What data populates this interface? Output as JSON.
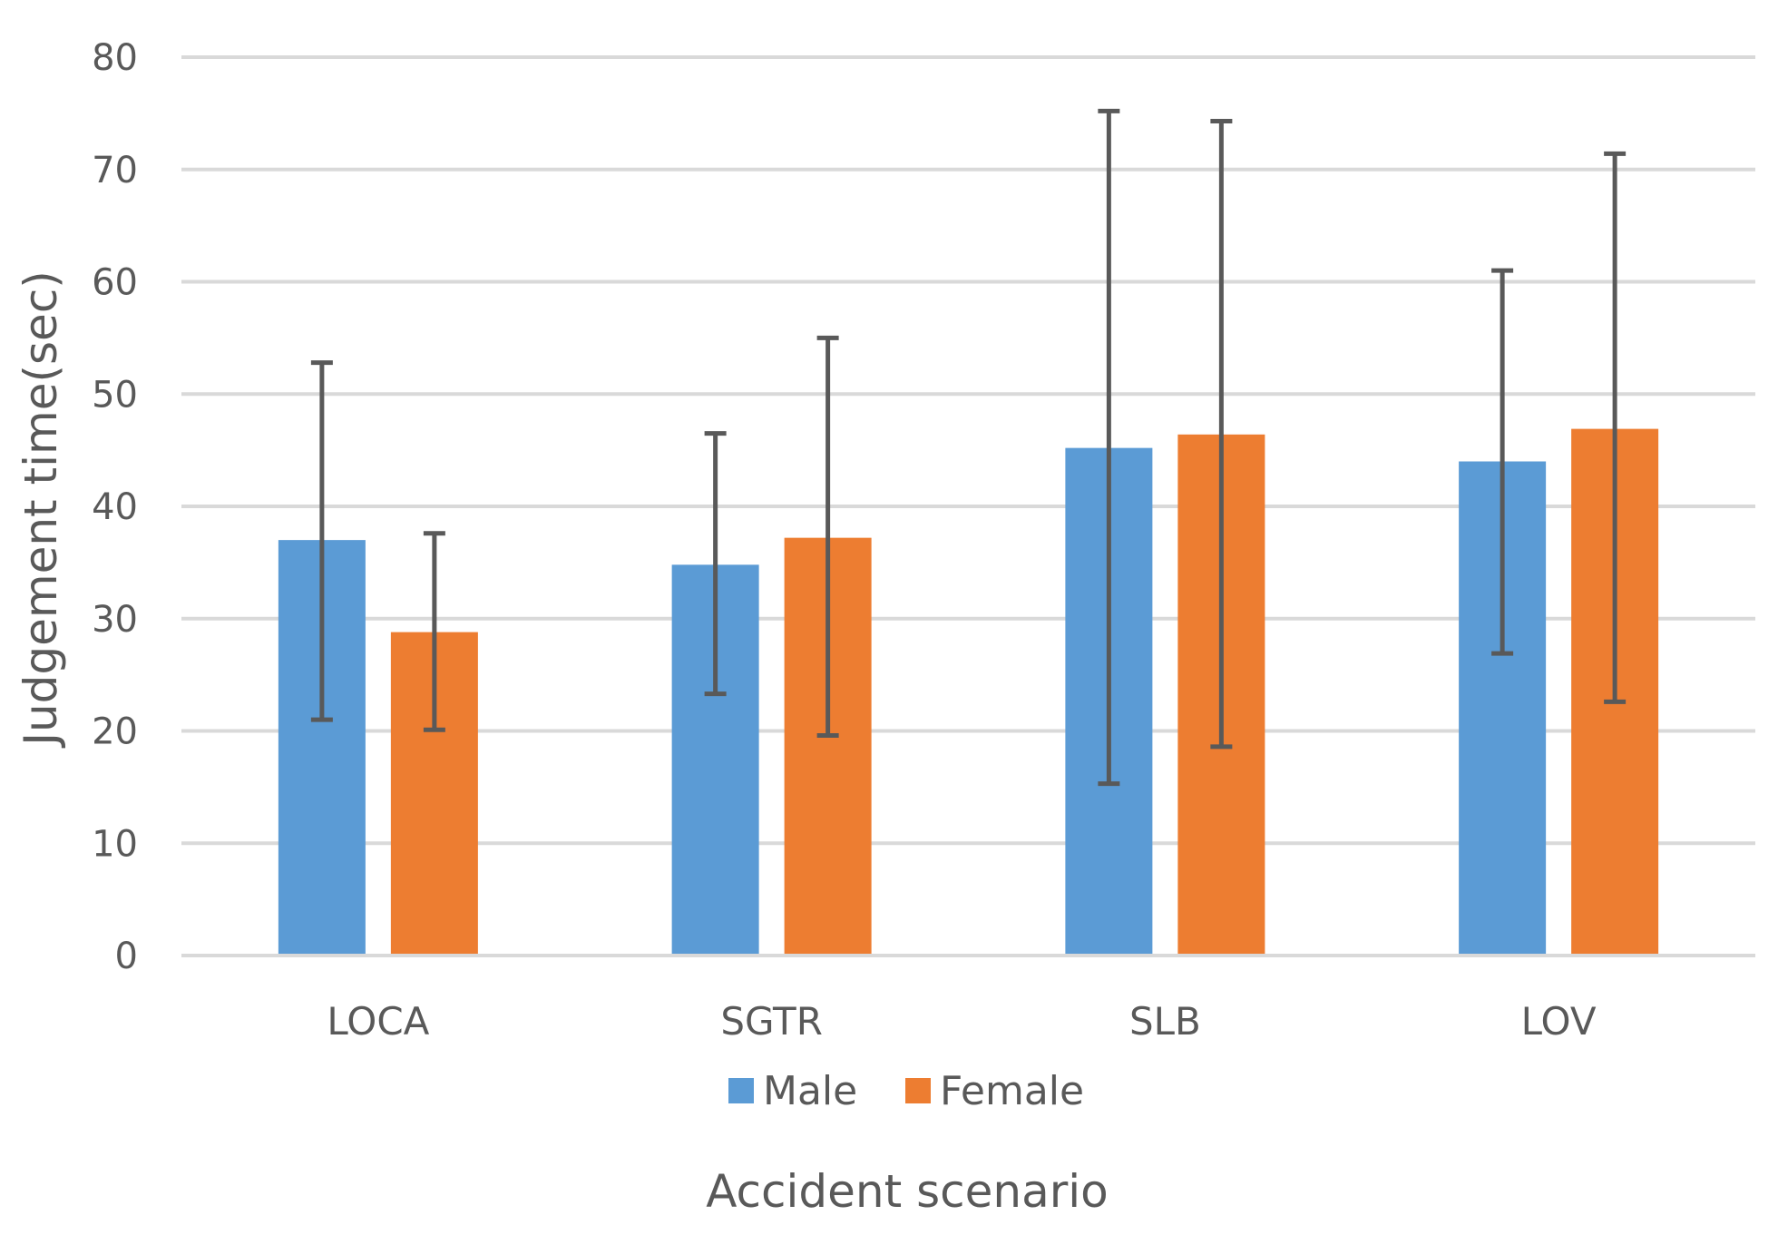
{
  "chart_data": {
    "type": "bar",
    "title": "",
    "xlabel": "Accident scenario",
    "ylabel": "Judgement time(sec)",
    "ylim": [
      0,
      80
    ],
    "yticks": [
      0,
      10,
      20,
      30,
      40,
      50,
      60,
      70,
      80
    ],
    "grid": true,
    "legend_position": "bottom",
    "categories": [
      "LOCA",
      "SGTR",
      "SLB",
      "LOV"
    ],
    "series": [
      {
        "name": "Male",
        "color": "#5B9BD5",
        "values": [
          37.0,
          34.8,
          45.2,
          44.0
        ],
        "err_low": [
          21.0,
          23.3,
          15.3,
          26.9
        ],
        "err_high": [
          52.8,
          46.5,
          75.2,
          61.0
        ]
      },
      {
        "name": "Female",
        "color": "#ED7D31",
        "values": [
          28.8,
          37.2,
          46.4,
          46.9
        ],
        "err_low": [
          20.1,
          19.6,
          18.6,
          22.6
        ],
        "err_high": [
          37.6,
          55.0,
          74.3,
          71.4
        ]
      }
    ]
  }
}
